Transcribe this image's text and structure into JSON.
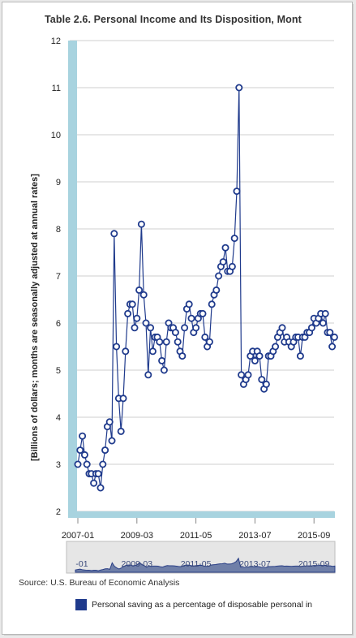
{
  "chart_data": {
    "type": "line",
    "title": "Table 2.6. Personal Income and Its Disposition, Mont",
    "ylabel": "[Billions of dollars; months are seasonally adjusted at annual rates]",
    "xlabel": "",
    "ylim": [
      2,
      12
    ],
    "yticks": [
      "2",
      "3",
      "4",
      "5",
      "6",
      "7",
      "8",
      "9",
      "10",
      "11",
      "12"
    ],
    "xticks": [
      "2007-01",
      "2009-03",
      "2011-05",
      "2013-07",
      "2015-09"
    ],
    "navigator_ticks": [
      "2009-03",
      "2011-05",
      "2013-07",
      "2015-09"
    ],
    "navigator_cut_label": "-01",
    "start": "2007-01",
    "grid": true,
    "legend_position": "bottom",
    "series": [
      {
        "name": "Personal saving as a percentage of disposable personal in",
        "color": "#1f3a8c",
        "values": [
          3.0,
          3.3,
          3.6,
          3.2,
          3.0,
          2.8,
          2.8,
          2.6,
          2.8,
          2.8,
          2.5,
          3.0,
          3.3,
          3.8,
          3.9,
          3.5,
          7.9,
          5.5,
          4.4,
          3.7,
          4.4,
          5.4,
          6.2,
          6.4,
          6.4,
          5.9,
          6.1,
          6.7,
          8.1,
          6.6,
          6.0,
          4.9,
          5.9,
          5.4,
          5.7,
          5.7,
          5.6,
          5.2,
          5.0,
          5.6,
          6.0,
          5.9,
          5.9,
          5.8,
          5.6,
          5.4,
          5.3,
          5.9,
          6.3,
          6.4,
          6.1,
          5.8,
          5.9,
          6.1,
          6.2,
          6.2,
          5.7,
          5.5,
          5.6,
          6.4,
          6.6,
          6.7,
          7.0,
          7.2,
          7.3,
          7.6,
          7.1,
          7.1,
          7.2,
          7.8,
          8.8,
          11.0,
          4.9,
          4.7,
          4.8,
          4.9,
          5.3,
          5.4,
          5.2,
          5.4,
          5.3,
          4.8,
          4.6,
          4.7,
          5.3,
          5.3,
          5.4,
          5.5,
          5.7,
          5.8,
          5.9,
          5.6,
          5.7,
          5.6,
          5.5,
          5.6,
          5.7,
          5.7,
          5.3,
          5.7,
          5.7,
          5.8,
          5.8,
          5.9,
          6.1,
          6.0,
          6.1,
          6.2,
          6.0,
          6.2,
          5.8,
          5.8,
          5.5,
          5.7
        ]
      }
    ]
  },
  "source": "Source: U.S. Bureau of Economic Analysis"
}
